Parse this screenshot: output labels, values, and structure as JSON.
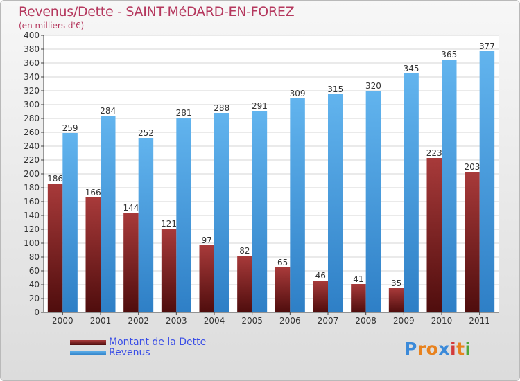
{
  "chart_data": {
    "type": "bar",
    "title": "Revenus/Dette - SAINT-MéDARD-EN-FOREZ",
    "subtitle": "(en milliers d'€)",
    "categories": [
      "2000",
      "2001",
      "2002",
      "2003",
      "2004",
      "2005",
      "2006",
      "2007",
      "2008",
      "2009",
      "2010",
      "2011"
    ],
    "series": [
      {
        "name": "Montant de la Dette",
        "color": "#7a1f1f",
        "values": [
          186,
          166,
          144,
          121,
          97,
          82,
          65,
          46,
          41,
          35,
          223,
          203
        ]
      },
      {
        "name": "Revenus",
        "color": "#4a9fe0",
        "values": [
          259,
          284,
          252,
          281,
          288,
          291,
          309,
          315,
          320,
          345,
          365,
          377
        ]
      }
    ],
    "ylim": [
      0,
      400
    ],
    "yticks": [
      0,
      20,
      40,
      60,
      80,
      100,
      120,
      140,
      160,
      180,
      200,
      220,
      240,
      260,
      280,
      300,
      320,
      340,
      360,
      380,
      400
    ],
    "grid": true,
    "legend_position": "bottom-left"
  },
  "logo": {
    "letters": [
      "P",
      "r",
      "o",
      "x",
      "i",
      "t",
      "i"
    ],
    "colors": [
      "#3b8ad9",
      "#e8821e",
      "#e8821e",
      "#3b8ad9",
      "#d33b3b",
      "#e8821e",
      "#4fa83a"
    ]
  }
}
